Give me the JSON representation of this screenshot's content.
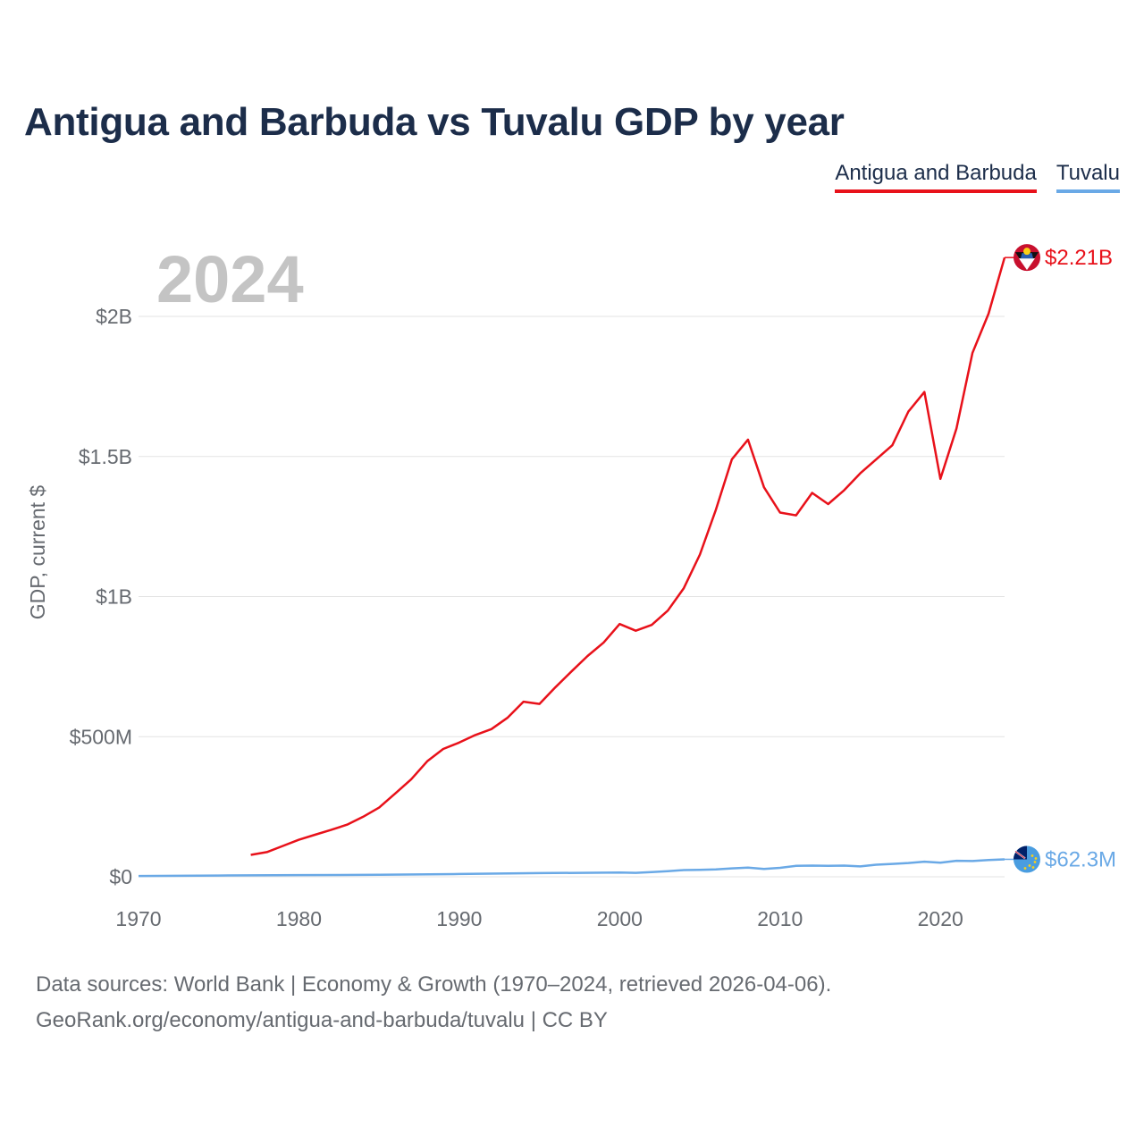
{
  "title": "Antigua and Barbuda vs Tuvalu GDP by year",
  "legend": {
    "antigua": "Antigua and Barbuda",
    "tuvalu": "Tuvalu"
  },
  "year_overlay": "2024",
  "footer": {
    "line1": "Data sources: World Bank | Economy & Growth (1970–2024, retrieved 2026-04-06).",
    "line2": "GeoRank.org/economy/antigua-and-barbuda/tuvalu | CC BY"
  },
  "colors": {
    "antigua": "#e8111a",
    "tuvalu": "#6aa9e6",
    "title": "#1c2d4a",
    "axis_text": "#666a70",
    "grid": "#e3e3e3",
    "year": "#c4c4c4"
  },
  "chart_data": {
    "type": "line",
    "title": "Antigua and Barbuda vs Tuvalu GDP by year",
    "xlabel": "",
    "ylabel": "GDP, current $",
    "xlim": [
      1970,
      2024
    ],
    "ylim": [
      0,
      2000000000
    ],
    "x_ticks": [
      1970,
      1980,
      1990,
      2000,
      2010,
      2020
    ],
    "y_ticks": [
      {
        "value": 0,
        "label": "$0"
      },
      {
        "value": 500000000,
        "label": "$500M"
      },
      {
        "value": 1000000000,
        "label": "$1B"
      },
      {
        "value": 1500000000,
        "label": "$1.5B"
      },
      {
        "value": 2000000000,
        "label": "$2B"
      }
    ],
    "series": [
      {
        "name": "Antigua and Barbuda",
        "end_label": "$2.21B",
        "flag_icon": "antigua-flag-icon",
        "x": [
          1977,
          1978,
          1979,
          1980,
          1981,
          1982,
          1983,
          1984,
          1985,
          1986,
          1987,
          1988,
          1989,
          1990,
          1991,
          1992,
          1993,
          1994,
          1995,
          1996,
          1997,
          1998,
          1999,
          2000,
          2001,
          2002,
          2003,
          2004,
          2005,
          2006,
          2007,
          2008,
          2009,
          2010,
          2011,
          2012,
          2013,
          2014,
          2015,
          2016,
          2017,
          2018,
          2019,
          2020,
          2021,
          2022,
          2023,
          2024
        ],
        "values": [
          78000000,
          88000000,
          110000000,
          132000000,
          150000000,
          167000000,
          186000000,
          214000000,
          247000000,
          297000000,
          348000000,
          412000000,
          456000000,
          479000000,
          506000000,
          527000000,
          567000000,
          625000000,
          617000000,
          677000000,
          733000000,
          788000000,
          836000000,
          902000000,
          878000000,
          899000000,
          950000000,
          1030000000,
          1150000000,
          1310000000,
          1490000000,
          1560000000,
          1390000000,
          1300000000,
          1290000000,
          1370000000,
          1330000000,
          1380000000,
          1440000000,
          1490000000,
          1540000000,
          1660000000,
          1730000000,
          1420000000,
          1600000000,
          1870000000,
          2010000000,
          2210000000
        ]
      },
      {
        "name": "Tuvalu",
        "end_label": "$62.3M",
        "flag_icon": "tuvalu-flag-icon",
        "x": [
          1970,
          1975,
          1980,
          1985,
          1990,
          1995,
          2000,
          2001,
          2002,
          2003,
          2004,
          2005,
          2006,
          2007,
          2008,
          2009,
          2010,
          2011,
          2012,
          2013,
          2014,
          2015,
          2016,
          2017,
          2018,
          2019,
          2020,
          2021,
          2022,
          2023,
          2024
        ],
        "values": [
          3000000,
          4500000,
          6000000,
          7000000,
          10000000,
          13000000,
          15000000,
          14000000,
          17000000,
          20000000,
          24000000,
          25000000,
          26000000,
          30000000,
          33000000,
          28000000,
          32000000,
          39000000,
          40000000,
          39000000,
          40000000,
          37000000,
          43000000,
          46000000,
          49000000,
          54000000,
          50000000,
          57000000,
          56000000,
          60000000,
          62300000
        ]
      }
    ]
  }
}
